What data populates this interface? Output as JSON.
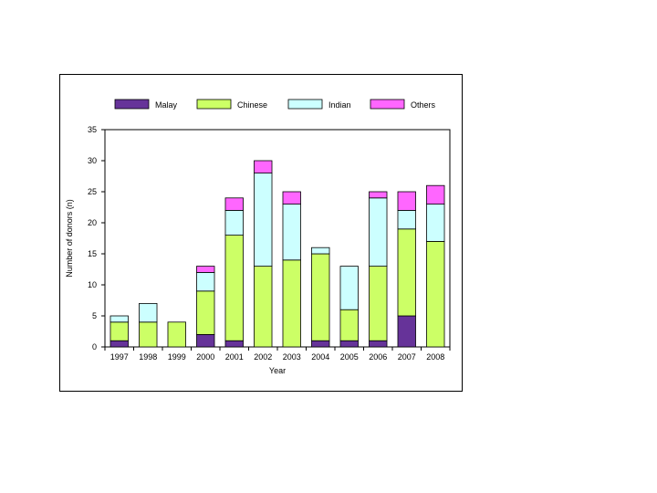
{
  "chart_data": {
    "type": "bar",
    "stacked": true,
    "title": "",
    "xlabel": "Year",
    "ylabel": "Number of donors (n)",
    "ylim": [
      0,
      35
    ],
    "yticks": [
      "0",
      "5",
      "10",
      "15",
      "20",
      "25",
      "30",
      "35"
    ],
    "grid": false,
    "legend_position": "top",
    "categories": [
      "1997",
      "1998",
      "1999",
      "2000",
      "2001",
      "2002",
      "2003",
      "2004",
      "2005",
      "2006",
      "2007",
      "2008"
    ],
    "series": [
      {
        "name": "Malay",
        "color": "#663399",
        "values": [
          1,
          0,
          0,
          2,
          1,
          0,
          0,
          1,
          1,
          1,
          5,
          0
        ]
      },
      {
        "name": "Chinese",
        "color": "#ccff66",
        "values": [
          3,
          4,
          4,
          7,
          17,
          13,
          14,
          14,
          5,
          12,
          14,
          17
        ]
      },
      {
        "name": "Indian",
        "color": "#ccffff",
        "values": [
          1,
          3,
          0,
          3,
          4,
          15,
          9,
          1,
          7,
          11,
          3,
          6
        ]
      },
      {
        "name": "Others",
        "color": "#ff66ff",
        "values": [
          0,
          0,
          0,
          1,
          2,
          2,
          2,
          0,
          0,
          1,
          3,
          3
        ]
      }
    ]
  }
}
